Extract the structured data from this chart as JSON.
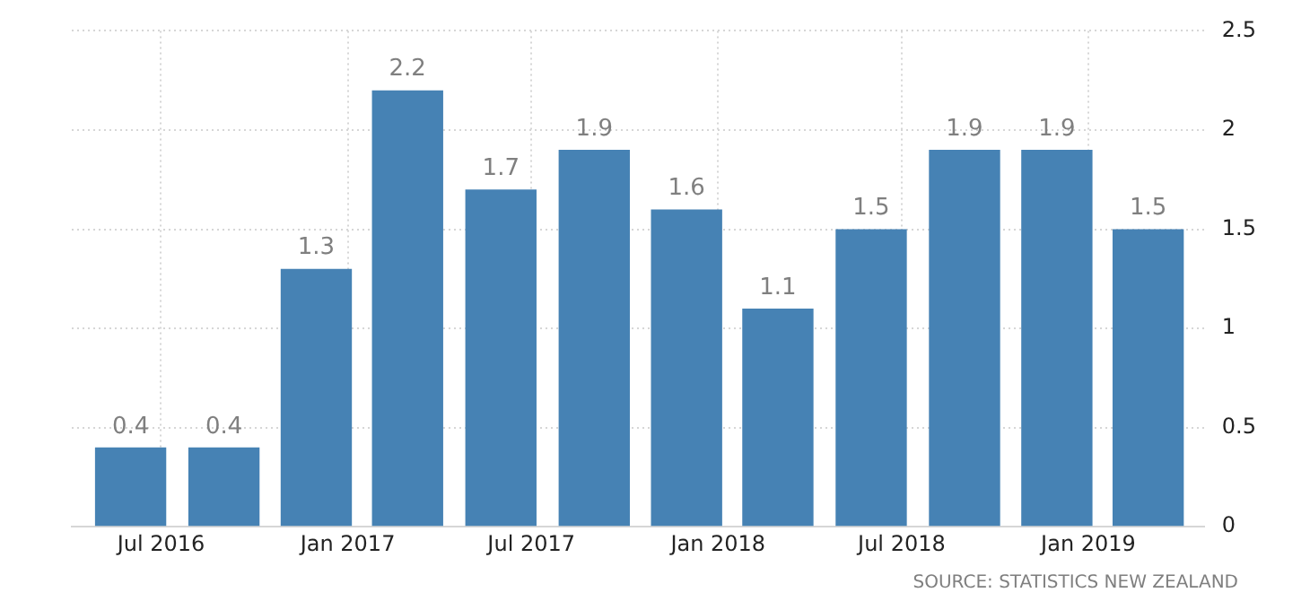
{
  "chart_data": {
    "type": "bar",
    "x": [
      "2016-06",
      "2016-09",
      "2016-12",
      "2017-03",
      "2017-06",
      "2017-09",
      "2017-12",
      "2018-03",
      "2018-06",
      "2018-09",
      "2018-12",
      "2019-03"
    ],
    "values": [
      0.4,
      0.4,
      1.3,
      2.2,
      1.7,
      1.9,
      1.6,
      1.1,
      1.5,
      1.9,
      1.9,
      1.5
    ],
    "color": "#4682b4",
    "xlim": [
      "2016-04-04",
      "2019-04-25"
    ],
    "xticks": [
      {
        "value": "2016-07",
        "label": "Jul 2016"
      },
      {
        "value": "2017-01",
        "label": "Jan 2017"
      },
      {
        "value": "2017-07",
        "label": "Jul 2017"
      },
      {
        "value": "2018-01",
        "label": "Jan 2018"
      },
      {
        "value": "2018-07",
        "label": "Jul 2018"
      },
      {
        "value": "2019-01",
        "label": "Jan 2019"
      }
    ],
    "ylim": [
      0,
      2.5
    ],
    "yticks": [
      0,
      0.5,
      1,
      1.5,
      2,
      2.5
    ],
    "grid": true,
    "data_labels": true,
    "annotations": [
      "SOURCE: STATISTICS NEW ZEALAND"
    ]
  }
}
